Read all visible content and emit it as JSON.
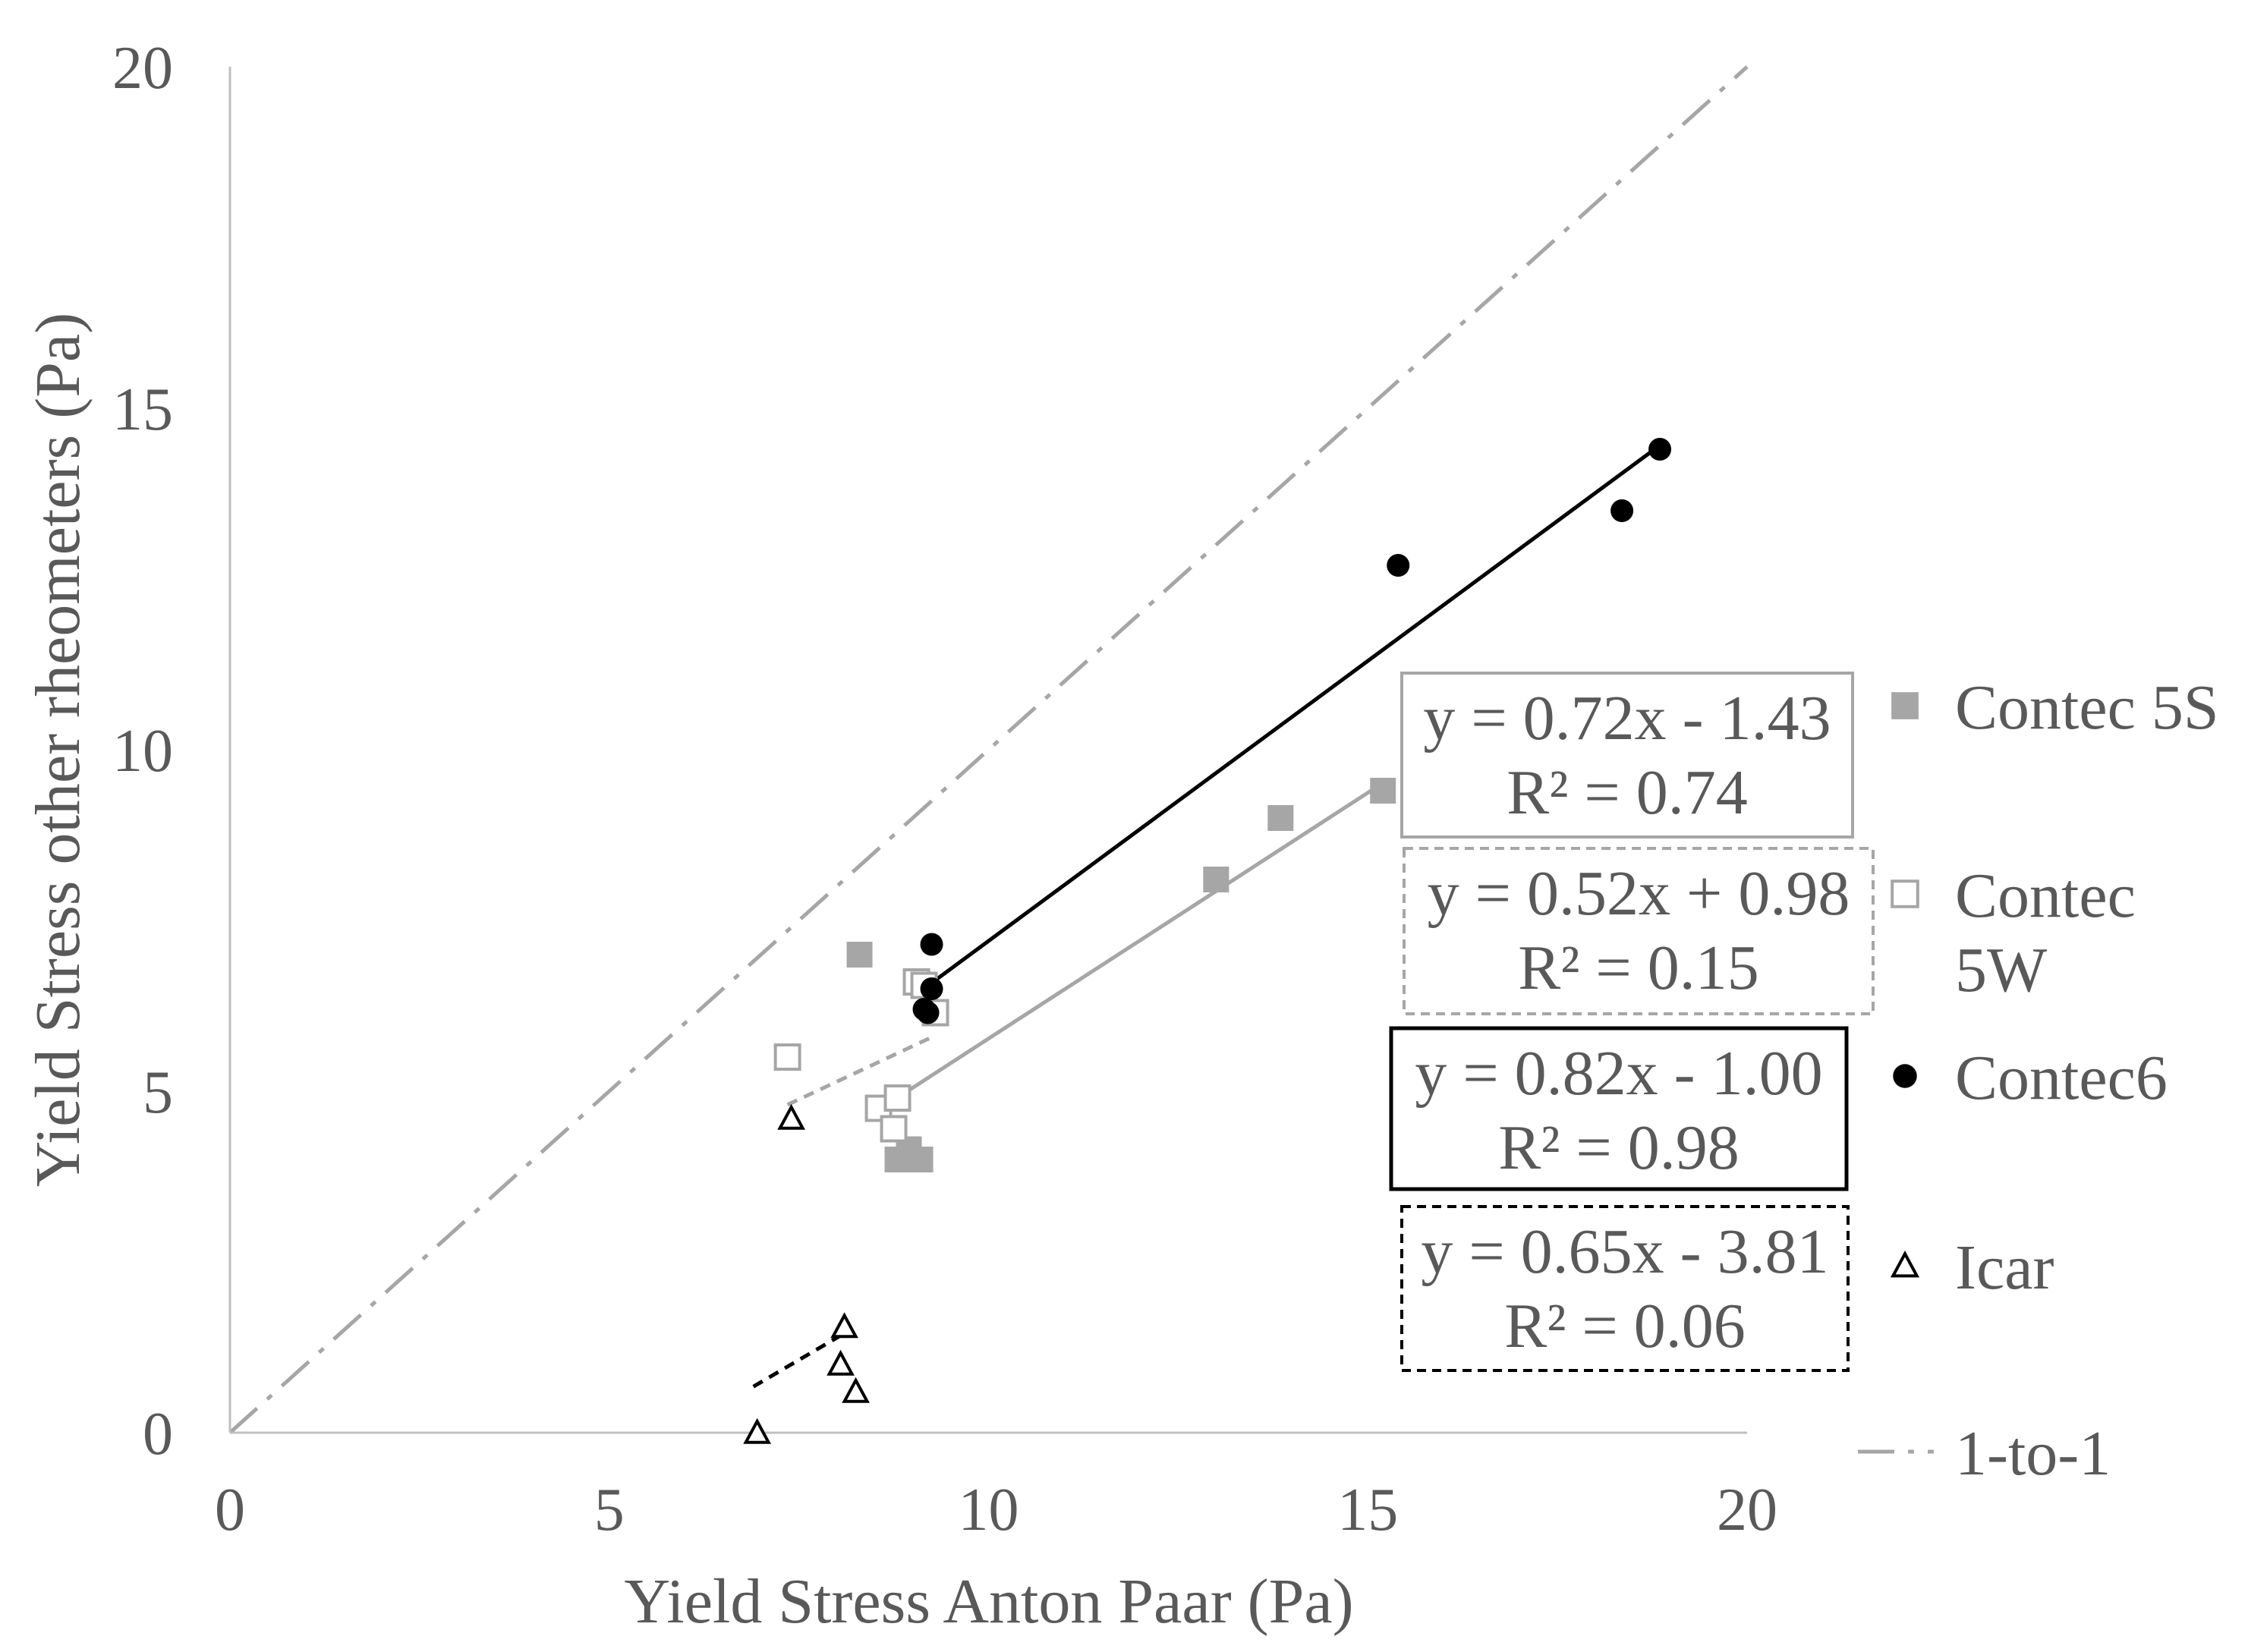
{
  "chart_data": {
    "type": "scatter",
    "title": "",
    "xlabel": "Yield Stress Anton Paar (Pa)",
    "ylabel": "Yield Stress other rheometers (Pa)",
    "xlim": [
      0,
      20
    ],
    "ylim": [
      0,
      20
    ],
    "x_ticks": [
      0,
      5,
      10,
      15,
      20
    ],
    "y_ticks": [
      0,
      5,
      10,
      15,
      20
    ],
    "x_tick_labels": [
      "0",
      "5",
      "10",
      "15",
      "20"
    ],
    "y_tick_labels": [
      "0",
      "5",
      "10",
      "15",
      "20"
    ],
    "grid": false,
    "legend_position": "right",
    "series": [
      {
        "name": "Contec 5S",
        "marker": "filled-square",
        "color": "#a6a6a6",
        "points": [
          [
            8.3,
            7.0
          ],
          [
            13.0,
            8.1
          ],
          [
            13.85,
            9.0
          ],
          [
            15.2,
            9.4
          ],
          [
            8.8,
            4.0
          ],
          [
            8.95,
            4.15
          ],
          [
            9.1,
            4.0
          ]
        ],
        "trendline": {
          "x": [
            8.6,
            15.2
          ],
          "color": "#a6a6a6",
          "dash": "solid",
          "equation": "y = 0.72x - 1.43",
          "r2": "R² = 0.74"
        }
      },
      {
        "name": "Contec 5W",
        "marker": "open-square",
        "color": "#a6a6a6",
        "points": [
          [
            7.35,
            5.5
          ],
          [
            8.55,
            4.75
          ],
          [
            8.75,
            4.45
          ],
          [
            8.8,
            4.9
          ],
          [
            9.05,
            6.6
          ],
          [
            9.15,
            6.55
          ],
          [
            9.3,
            6.15
          ]
        ],
        "trendline": {
          "x": [
            7.35,
            9.3
          ],
          "color": "#a6a6a6",
          "dash": "dashed",
          "equation": "y = 0.52x + 0.98",
          "r2": "R² = 0.15"
        }
      },
      {
        "name": "Contec6",
        "marker": "filled-circle",
        "color": "#000000",
        "points": [
          [
            9.25,
            7.15
          ],
          [
            9.25,
            6.5
          ],
          [
            9.15,
            6.2
          ],
          [
            9.2,
            6.15
          ],
          [
            15.4,
            12.7
          ],
          [
            18.35,
            13.5
          ],
          [
            18.85,
            14.4
          ]
        ],
        "trendline": {
          "x": [
            9.2,
            18.9
          ],
          "color": "#000000",
          "dash": "solid",
          "equation": "y = 0.82x - 1.00",
          "r2": "R² = 0.98"
        }
      },
      {
        "name": "Icar",
        "marker": "open-triangle",
        "color": "#000000",
        "points": [
          [
            6.95,
            0.0
          ],
          [
            7.4,
            4.6
          ],
          [
            8.05,
            1.0
          ],
          [
            8.1,
            1.55
          ],
          [
            8.25,
            0.6
          ]
        ],
        "trendline": {
          "x": [
            6.9,
            8.1
          ],
          "color": "#000000",
          "dash": "dashed",
          "equation": "y = 0.65x - 3.81",
          "r2": "R² = 0.06"
        }
      },
      {
        "name": "1-to-1",
        "marker": "none",
        "color": "#a6a6a6",
        "line": {
          "x": [
            0,
            20
          ],
          "y": [
            0,
            20
          ],
          "dash": "dash-dot"
        }
      }
    ]
  }
}
